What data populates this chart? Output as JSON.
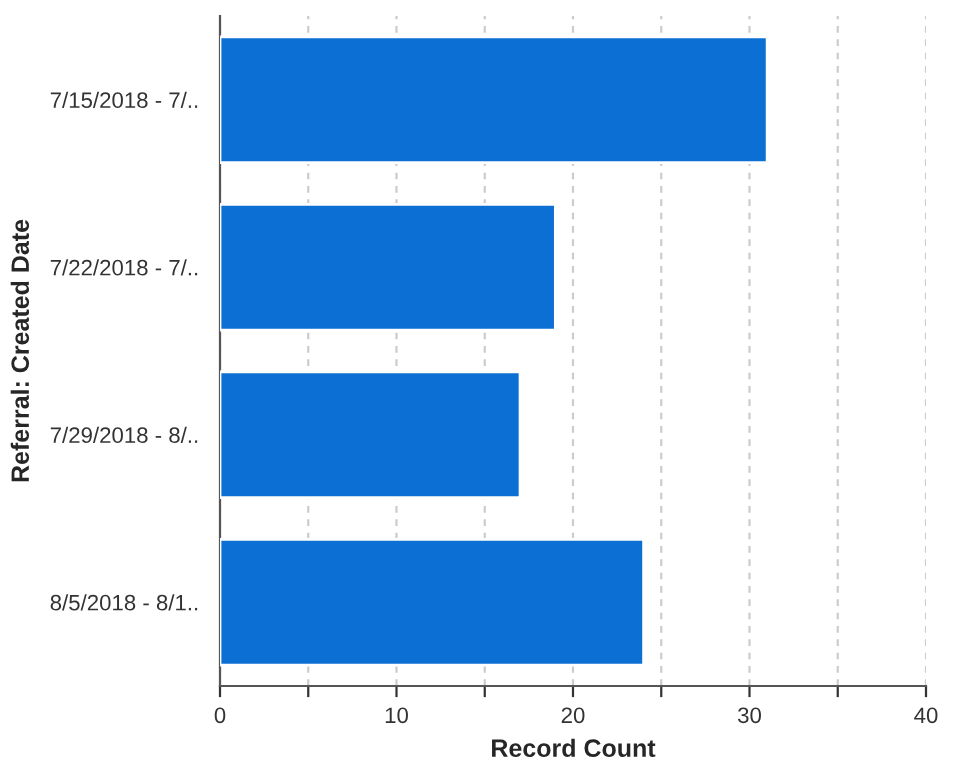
{
  "chart_data": {
    "type": "bar",
    "orientation": "horizontal",
    "xlabel": "Record Count",
    "ylabel": "Referral: Created Date",
    "categories": [
      "7/15/2018 - 7/..",
      "7/22/2018 - 7/..",
      "7/29/2018 - 8/..",
      "8/5/2018 - 8/1.."
    ],
    "values": [
      31,
      19,
      17,
      24
    ],
    "color": "#0b6fd3",
    "xlim": [
      0,
      40
    ],
    "xticks": [
      0,
      {
        "value": 5,
        "label": null
      },
      10,
      {
        "value": 15,
        "label": null
      },
      20,
      {
        "value": 25,
        "label": null
      },
      30,
      {
        "value": 35,
        "label": null
      },
      40
    ],
    "grid": "x"
  }
}
